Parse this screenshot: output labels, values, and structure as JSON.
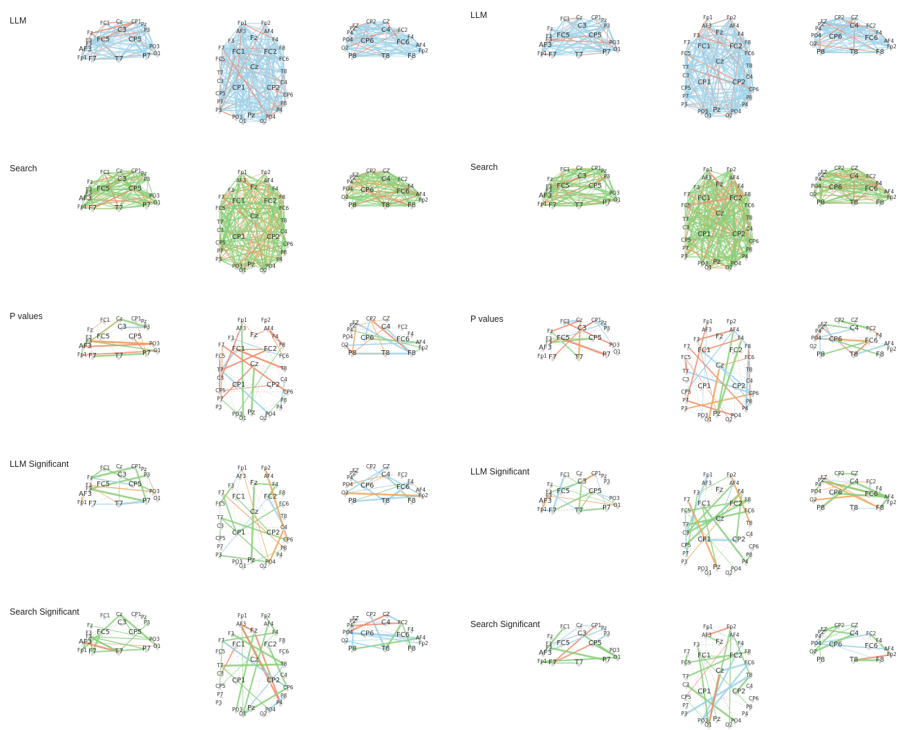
{
  "colors": {
    "llm": "#9fd3ea",
    "search": "#88d07a",
    "sig_pos": "#f08a6a",
    "sig_neg": "#9fd3ea",
    "warm": "#f2a55a",
    "node": "#d8d8d8"
  },
  "views": {
    "side_left": {
      "electrodes": [
        "FC1",
        "Cz",
        "CP1",
        "C3",
        "Pz",
        "P3",
        "Fz",
        "F3",
        "F3",
        "FC5",
        "CP5",
        "PO3",
        "AF3",
        "O1",
        "Fp1",
        "F7",
        "T7",
        "P7"
      ],
      "big": [
        "C3",
        "FC5",
        "CP5",
        "F7",
        "T7",
        "P7",
        "AF3"
      ]
    },
    "top": {
      "electrodes": [
        "Fp1",
        "Fp2",
        "AF3",
        "AF4",
        "Fz",
        "F3",
        "F4",
        "F7",
        "F8",
        "FC5",
        "FC1",
        "FC2",
        "FC6",
        "T7",
        "T8",
        "C3",
        "C4",
        "Cz",
        "CP5",
        "CP6",
        "CP1",
        "CP2",
        "P7",
        "P8",
        "P3",
        "P4",
        "PO3",
        "Pz",
        "PO4",
        "O1",
        "O2"
      ],
      "big": [
        "Fz",
        "FC1",
        "FC2",
        "Cz",
        "CP1",
        "CP2",
        "Pz"
      ]
    },
    "side_right": {
      "electrodes": [
        "CP2",
        "CZ",
        "C4",
        "FC2",
        "PZ",
        "P4",
        "FZ",
        "F4",
        "PO4",
        "CP6",
        "FC6",
        "AF4",
        "O2",
        "P8",
        "T8",
        "F8",
        "Fp2"
      ],
      "big": [
        "CP6",
        "C4",
        "FC6",
        "P8",
        "T8",
        "F8"
      ]
    }
  },
  "columns": [
    {
      "rows": [
        {
          "label": "LLM",
          "palette": "llm",
          "style": "dense"
        },
        {
          "label": "Search",
          "palette": "search",
          "style": "dense"
        },
        {
          "label": "P values",
          "palette": "mixed",
          "style": "sparse"
        },
        {
          "label": "LLM Significant",
          "palette": "llm_sig",
          "style": "sparse"
        },
        {
          "label": "Search Significant",
          "palette": "search_sig",
          "style": "sparse"
        }
      ]
    },
    {
      "rows": [
        {
          "label": "LLM",
          "palette": "llm",
          "style": "dense"
        },
        {
          "label": "Search",
          "palette": "search",
          "style": "dense"
        },
        {
          "label": "P values",
          "palette": "mixed",
          "style": "sparse"
        },
        {
          "label": "LLM Significant",
          "palette": "llm_sig",
          "style": "sparse"
        },
        {
          "label": "Search Significant",
          "palette": "search_sig",
          "style": "sparse"
        }
      ]
    }
  ]
}
